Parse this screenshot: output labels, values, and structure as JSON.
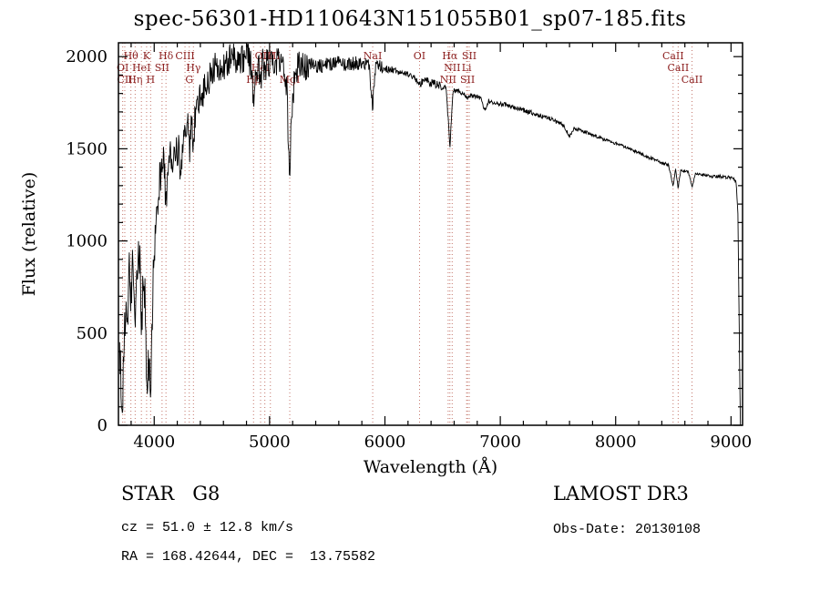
{
  "title": "spec-56301-HD110643N151055B01_sp07-185.fits",
  "annotations": {
    "object_class": "STAR   G8",
    "survey": "LAMOST DR3",
    "cz": "cz = 51.0 ± 12.8 km/s",
    "obs_date": "Obs-Date: 20130108",
    "ra_dec": "RA = 168.42644, DEC =  13.75582"
  },
  "chart_data": {
    "type": "line",
    "title": "spec-56301-HD110643N151055B01_sp07-185.fits",
    "xlabel": "Wavelength (Å)",
    "ylabel": "Flux (relative)",
    "xlim": [
      3690,
      9100
    ],
    "ylim": [
      0,
      2075
    ],
    "x_ticks": [
      4000,
      5000,
      6000,
      7000,
      8000,
      9000
    ],
    "y_ticks": [
      0,
      500,
      1000,
      1500,
      2000
    ],
    "x_minor_step": 200,
    "y_minor_step": 100,
    "grid": false,
    "legend": "none",
    "line_color": "#000000",
    "marker_line_color": "#c4756a",
    "marker_label_color": "#8b1d1d",
    "spectral_lines": [
      {
        "label": "OI",
        "wavelength": 3727,
        "row": 2
      },
      {
        "label": "CII",
        "wavelength": 3745,
        "row": 3
      },
      {
        "label": "Hθ",
        "wavelength": 3798,
        "row": 1
      },
      {
        "label": "Hη",
        "wavelength": 3835,
        "row": 3
      },
      {
        "label": "HeI",
        "wavelength": 3889,
        "row": 2
      },
      {
        "label": "K",
        "wavelength": 3934,
        "row": 1
      },
      {
        "label": "H",
        "wavelength": 3969,
        "row": 3
      },
      {
        "label": "SII",
        "wavelength": 4068,
        "row": 2
      },
      {
        "label": "Hδ",
        "wavelength": 4102,
        "row": 1
      },
      {
        "label": "CIII",
        "wavelength": 4267,
        "row": 1
      },
      {
        "label": "G",
        "wavelength": 4304,
        "row": 3
      },
      {
        "label": "Hγ",
        "wavelength": 4340,
        "row": 2
      },
      {
        "label": "Hβ",
        "wavelength": 4861,
        "row": 3
      },
      {
        "label": "HeI",
        "wavelength": 4922,
        "row": 2
      },
      {
        "label": "OIII",
        "wavelength": 4959,
        "row": 1
      },
      {
        "label": "OIII",
        "wavelength": 5007,
        "row": 1
      },
      {
        "label": "MgI",
        "wavelength": 5175,
        "row": 3
      },
      {
        "label": "NaI",
        "wavelength": 5894,
        "row": 1
      },
      {
        "label": "OI",
        "wavelength": 6300,
        "row": 1
      },
      {
        "label": "NII",
        "wavelength": 6548,
        "row": 3
      },
      {
        "label": "Hα",
        "wavelength": 6563,
        "row": 1
      },
      {
        "label": "NII",
        "wavelength": 6583,
        "row": 2
      },
      {
        "label": "Li",
        "wavelength": 6708,
        "row": 2
      },
      {
        "label": "SII",
        "wavelength": 6716,
        "row": 3
      },
      {
        "label": "SII",
        "wavelength": 6731,
        "row": 1
      },
      {
        "label": "CaII",
        "wavelength": 8498,
        "row": 1
      },
      {
        "label": "CaII",
        "wavelength": 8542,
        "row": 2
      },
      {
        "label": "CaII",
        "wavelength": 8662,
        "row": 3
      }
    ],
    "envelope_points": [
      [
        3700,
        420
      ],
      [
        3712,
        260
      ],
      [
        3727,
        130
      ],
      [
        3742,
        520
      ],
      [
        3756,
        720
      ],
      [
        3768,
        560
      ],
      [
        3782,
        860
      ],
      [
        3798,
        640
      ],
      [
        3810,
        880
      ],
      [
        3822,
        790
      ],
      [
        3835,
        520
      ],
      [
        3848,
        760
      ],
      [
        3862,
        880
      ],
      [
        3876,
        900
      ],
      [
        3889,
        560
      ],
      [
        3902,
        720
      ],
      [
        3918,
        760
      ],
      [
        3934,
        190
      ],
      [
        3950,
        380
      ],
      [
        3969,
        240
      ],
      [
        3984,
        620
      ],
      [
        4000,
        920
      ],
      [
        4020,
        1120
      ],
      [
        4045,
        1320
      ],
      [
        4070,
        1400
      ],
      [
        4085,
        1430
      ],
      [
        4102,
        1180
      ],
      [
        4118,
        1400
      ],
      [
        4140,
        1460
      ],
      [
        4165,
        1430
      ],
      [
        4190,
        1470
      ],
      [
        4210,
        1500
      ],
      [
        4227,
        1330
      ],
      [
        4245,
        1540
      ],
      [
        4270,
        1570
      ],
      [
        4290,
        1620
      ],
      [
        4304,
        1470
      ],
      [
        4320,
        1660
      ],
      [
        4340,
        1520
      ],
      [
        4360,
        1720
      ],
      [
        4390,
        1760
      ],
      [
        4420,
        1800
      ],
      [
        4460,
        1860
      ],
      [
        4500,
        1910
      ],
      [
        4540,
        1950
      ],
      [
        4580,
        1920
      ],
      [
        4620,
        1960
      ],
      [
        4660,
        1990
      ],
      [
        4700,
        2000
      ],
      [
        4740,
        1970
      ],
      [
        4780,
        2000
      ],
      [
        4820,
        1990
      ],
      [
        4840,
        1960
      ],
      [
        4861,
        1720
      ],
      [
        4880,
        1950
      ],
      [
        4905,
        1930
      ],
      [
        4922,
        1880
      ],
      [
        4940,
        1960
      ],
      [
        4960,
        1930
      ],
      [
        4980,
        1990
      ],
      [
        5007,
        1950
      ],
      [
        5030,
        1990
      ],
      [
        5060,
        1970
      ],
      [
        5090,
        1950
      ],
      [
        5120,
        1930
      ],
      [
        5150,
        1820
      ],
      [
        5172,
        1380
      ],
      [
        5190,
        1650
      ],
      [
        5215,
        1900
      ],
      [
        5250,
        1950
      ],
      [
        5290,
        1960
      ],
      [
        5330,
        1950
      ],
      [
        5380,
        1955
      ],
      [
        5430,
        1945
      ],
      [
        5480,
        1955
      ],
      [
        5530,
        1960
      ],
      [
        5580,
        1965
      ],
      [
        5630,
        1960
      ],
      [
        5680,
        1955
      ],
      [
        5730,
        1960
      ],
      [
        5780,
        1970
      ],
      [
        5830,
        1960
      ],
      [
        5860,
        1945
      ],
      [
        5894,
        1730
      ],
      [
        5915,
        1930
      ],
      [
        5945,
        1945
      ],
      [
        5980,
        1940
      ],
      [
        6020,
        1935
      ],
      [
        6060,
        1930
      ],
      [
        6110,
        1920
      ],
      [
        6160,
        1910
      ],
      [
        6210,
        1900
      ],
      [
        6260,
        1885
      ],
      [
        6300,
        1850
      ],
      [
        6340,
        1870
      ],
      [
        6390,
        1860
      ],
      [
        6440,
        1850
      ],
      [
        6490,
        1840
      ],
      [
        6530,
        1830
      ],
      [
        6563,
        1510
      ],
      [
        6590,
        1815
      ],
      [
        6640,
        1810
      ],
      [
        6690,
        1800
      ],
      [
        6716,
        1770
      ],
      [
        6740,
        1790
      ],
      [
        6790,
        1780
      ],
      [
        6830,
        1770
      ],
      [
        6868,
        1710
      ],
      [
        6900,
        1760
      ],
      [
        6950,
        1750
      ],
      [
        7000,
        1745
      ],
      [
        7060,
        1735
      ],
      [
        7120,
        1725
      ],
      [
        7180,
        1715
      ],
      [
        7240,
        1700
      ],
      [
        7300,
        1690
      ],
      [
        7360,
        1675
      ],
      [
        7420,
        1665
      ],
      [
        7480,
        1650
      ],
      [
        7540,
        1635
      ],
      [
        7600,
        1565
      ],
      [
        7640,
        1610
      ],
      [
        7700,
        1600
      ],
      [
        7760,
        1585
      ],
      [
        7820,
        1570
      ],
      [
        7880,
        1555
      ],
      [
        7940,
        1540
      ],
      [
        8000,
        1530
      ],
      [
        8060,
        1515
      ],
      [
        8120,
        1500
      ],
      [
        8180,
        1485
      ],
      [
        8240,
        1465
      ],
      [
        8300,
        1450
      ],
      [
        8360,
        1435
      ],
      [
        8420,
        1420
      ],
      [
        8460,
        1410
      ],
      [
        8498,
        1295
      ],
      [
        8520,
        1395
      ],
      [
        8542,
        1285
      ],
      [
        8565,
        1385
      ],
      [
        8600,
        1380
      ],
      [
        8630,
        1375
      ],
      [
        8662,
        1295
      ],
      [
        8690,
        1365
      ],
      [
        8730,
        1360
      ],
      [
        8780,
        1355
      ],
      [
        8830,
        1350
      ],
      [
        8880,
        1352
      ],
      [
        8930,
        1348
      ],
      [
        8980,
        1345
      ],
      [
        9020,
        1340
      ],
      [
        9045,
        1320
      ],
      [
        9060,
        1150
      ],
      [
        9070,
        600
      ],
      [
        9078,
        120
      ],
      [
        9082,
        0
      ]
    ],
    "noise_profile": [
      {
        "from": 3700,
        "to": 4000,
        "amp": 135
      },
      {
        "from": 4000,
        "to": 4360,
        "amp": 95
      },
      {
        "from": 4360,
        "to": 5340,
        "amp": 85
      },
      {
        "from": 5340,
        "to": 5980,
        "amp": 40
      },
      {
        "from": 5980,
        "to": 6560,
        "amp": 22
      },
      {
        "from": 6560,
        "to": 7600,
        "amp": 13
      },
      {
        "from": 7600,
        "to": 9100,
        "amp": 9
      }
    ],
    "noise_seed": 20130108,
    "sample_step": 4
  }
}
